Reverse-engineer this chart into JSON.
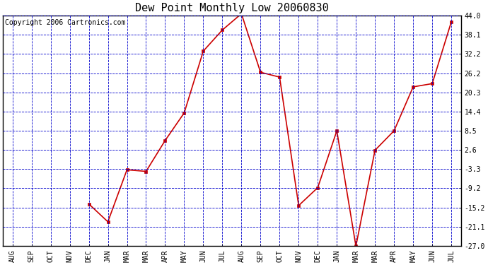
{
  "title": "Dew Point Monthly Low 20060830",
  "copyright": "Copyright 2006 Cartronics.com",
  "x_labels": [
    "AUG",
    "SEP",
    "OCT",
    "NOV",
    "DEC",
    "JAN",
    "MAR",
    "MAR",
    "APR",
    "MAY",
    "JUN",
    "JUL",
    "AUG",
    "SEP",
    "OCT",
    "NOV",
    "DEC",
    "JAN",
    "MAR",
    "MAR",
    "APR",
    "MAY",
    "JUN",
    "JUL"
  ],
  "y_values": [
    null,
    null,
    null,
    null,
    -14.0,
    -19.5,
    -3.5,
    -4.0,
    5.5,
    14.0,
    33.0,
    39.5,
    44.5,
    26.5,
    25.0,
    -14.5,
    -9.0,
    8.5,
    -27.0,
    2.5,
    8.5,
    22.0,
    23.0,
    42.0
  ],
  "yticks": [
    44.0,
    38.1,
    32.2,
    26.2,
    20.3,
    14.4,
    8.5,
    2.6,
    -3.3,
    -9.2,
    -15.2,
    -21.1,
    -27.0
  ],
  "ylim": [
    -27.0,
    44.0
  ],
  "line_color": "#cc0000",
  "marker": "s",
  "marker_size": 3,
  "bg_color": "#ffffff",
  "plot_bg_color": "#ffffff",
  "grid_color": "#0000cc",
  "title_fontsize": 11,
  "tick_fontsize": 7,
  "copyright_fontsize": 7,
  "figwidth": 6.9,
  "figheight": 3.75,
  "dpi": 100
}
